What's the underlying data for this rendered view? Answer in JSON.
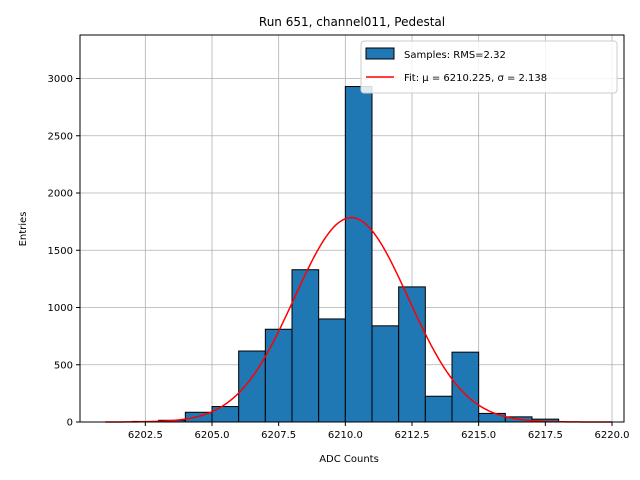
{
  "chart_data": {
    "type": "bar",
    "title": "Run 651, channel011, Pedestal",
    "xlabel": "ADC Counts",
    "ylabel": "Entries",
    "xlim": [
      6200.05,
      6220.45
    ],
    "ylim": [
      0,
      3380
    ],
    "grid": true,
    "legend_position": "top-right",
    "x_ticks": [
      6202.5,
      6205.0,
      6207.5,
      6210.0,
      6212.5,
      6215.0,
      6217.5,
      6220.0
    ],
    "x_tick_labels": [
      "6202.5",
      "6205.0",
      "6207.5",
      "6210.0",
      "6212.5",
      "6215.0",
      "6217.5",
      "6220.0"
    ],
    "y_ticks": [
      0,
      500,
      1000,
      1500,
      2000,
      2500,
      3000
    ],
    "y_tick_labels": [
      "0",
      "500",
      "1000",
      "1500",
      "2000",
      "2500",
      "3000"
    ],
    "series": [
      {
        "name": "Samples: RMS=2.32",
        "kind": "histogram",
        "color": "#1f77b4",
        "bin_edges": [
          6201,
          6202,
          6203,
          6204,
          6205,
          6206,
          6207,
          6208,
          6209,
          6210,
          6211,
          6212,
          6213,
          6214,
          6215,
          6216,
          6217,
          6218
        ],
        "counts": [
          0,
          5,
          15,
          85,
          135,
          620,
          810,
          1330,
          900,
          2930,
          840,
          1180,
          225,
          610,
          75,
          45,
          25
        ]
      },
      {
        "name": "Fit: μ = 6210.225, σ = 2.138",
        "kind": "line",
        "color": "#ff0000",
        "mu": 6210.225,
        "sigma": 2.138,
        "amplitude": 1785,
        "x_range": [
          6201,
          6220
        ]
      }
    ]
  }
}
